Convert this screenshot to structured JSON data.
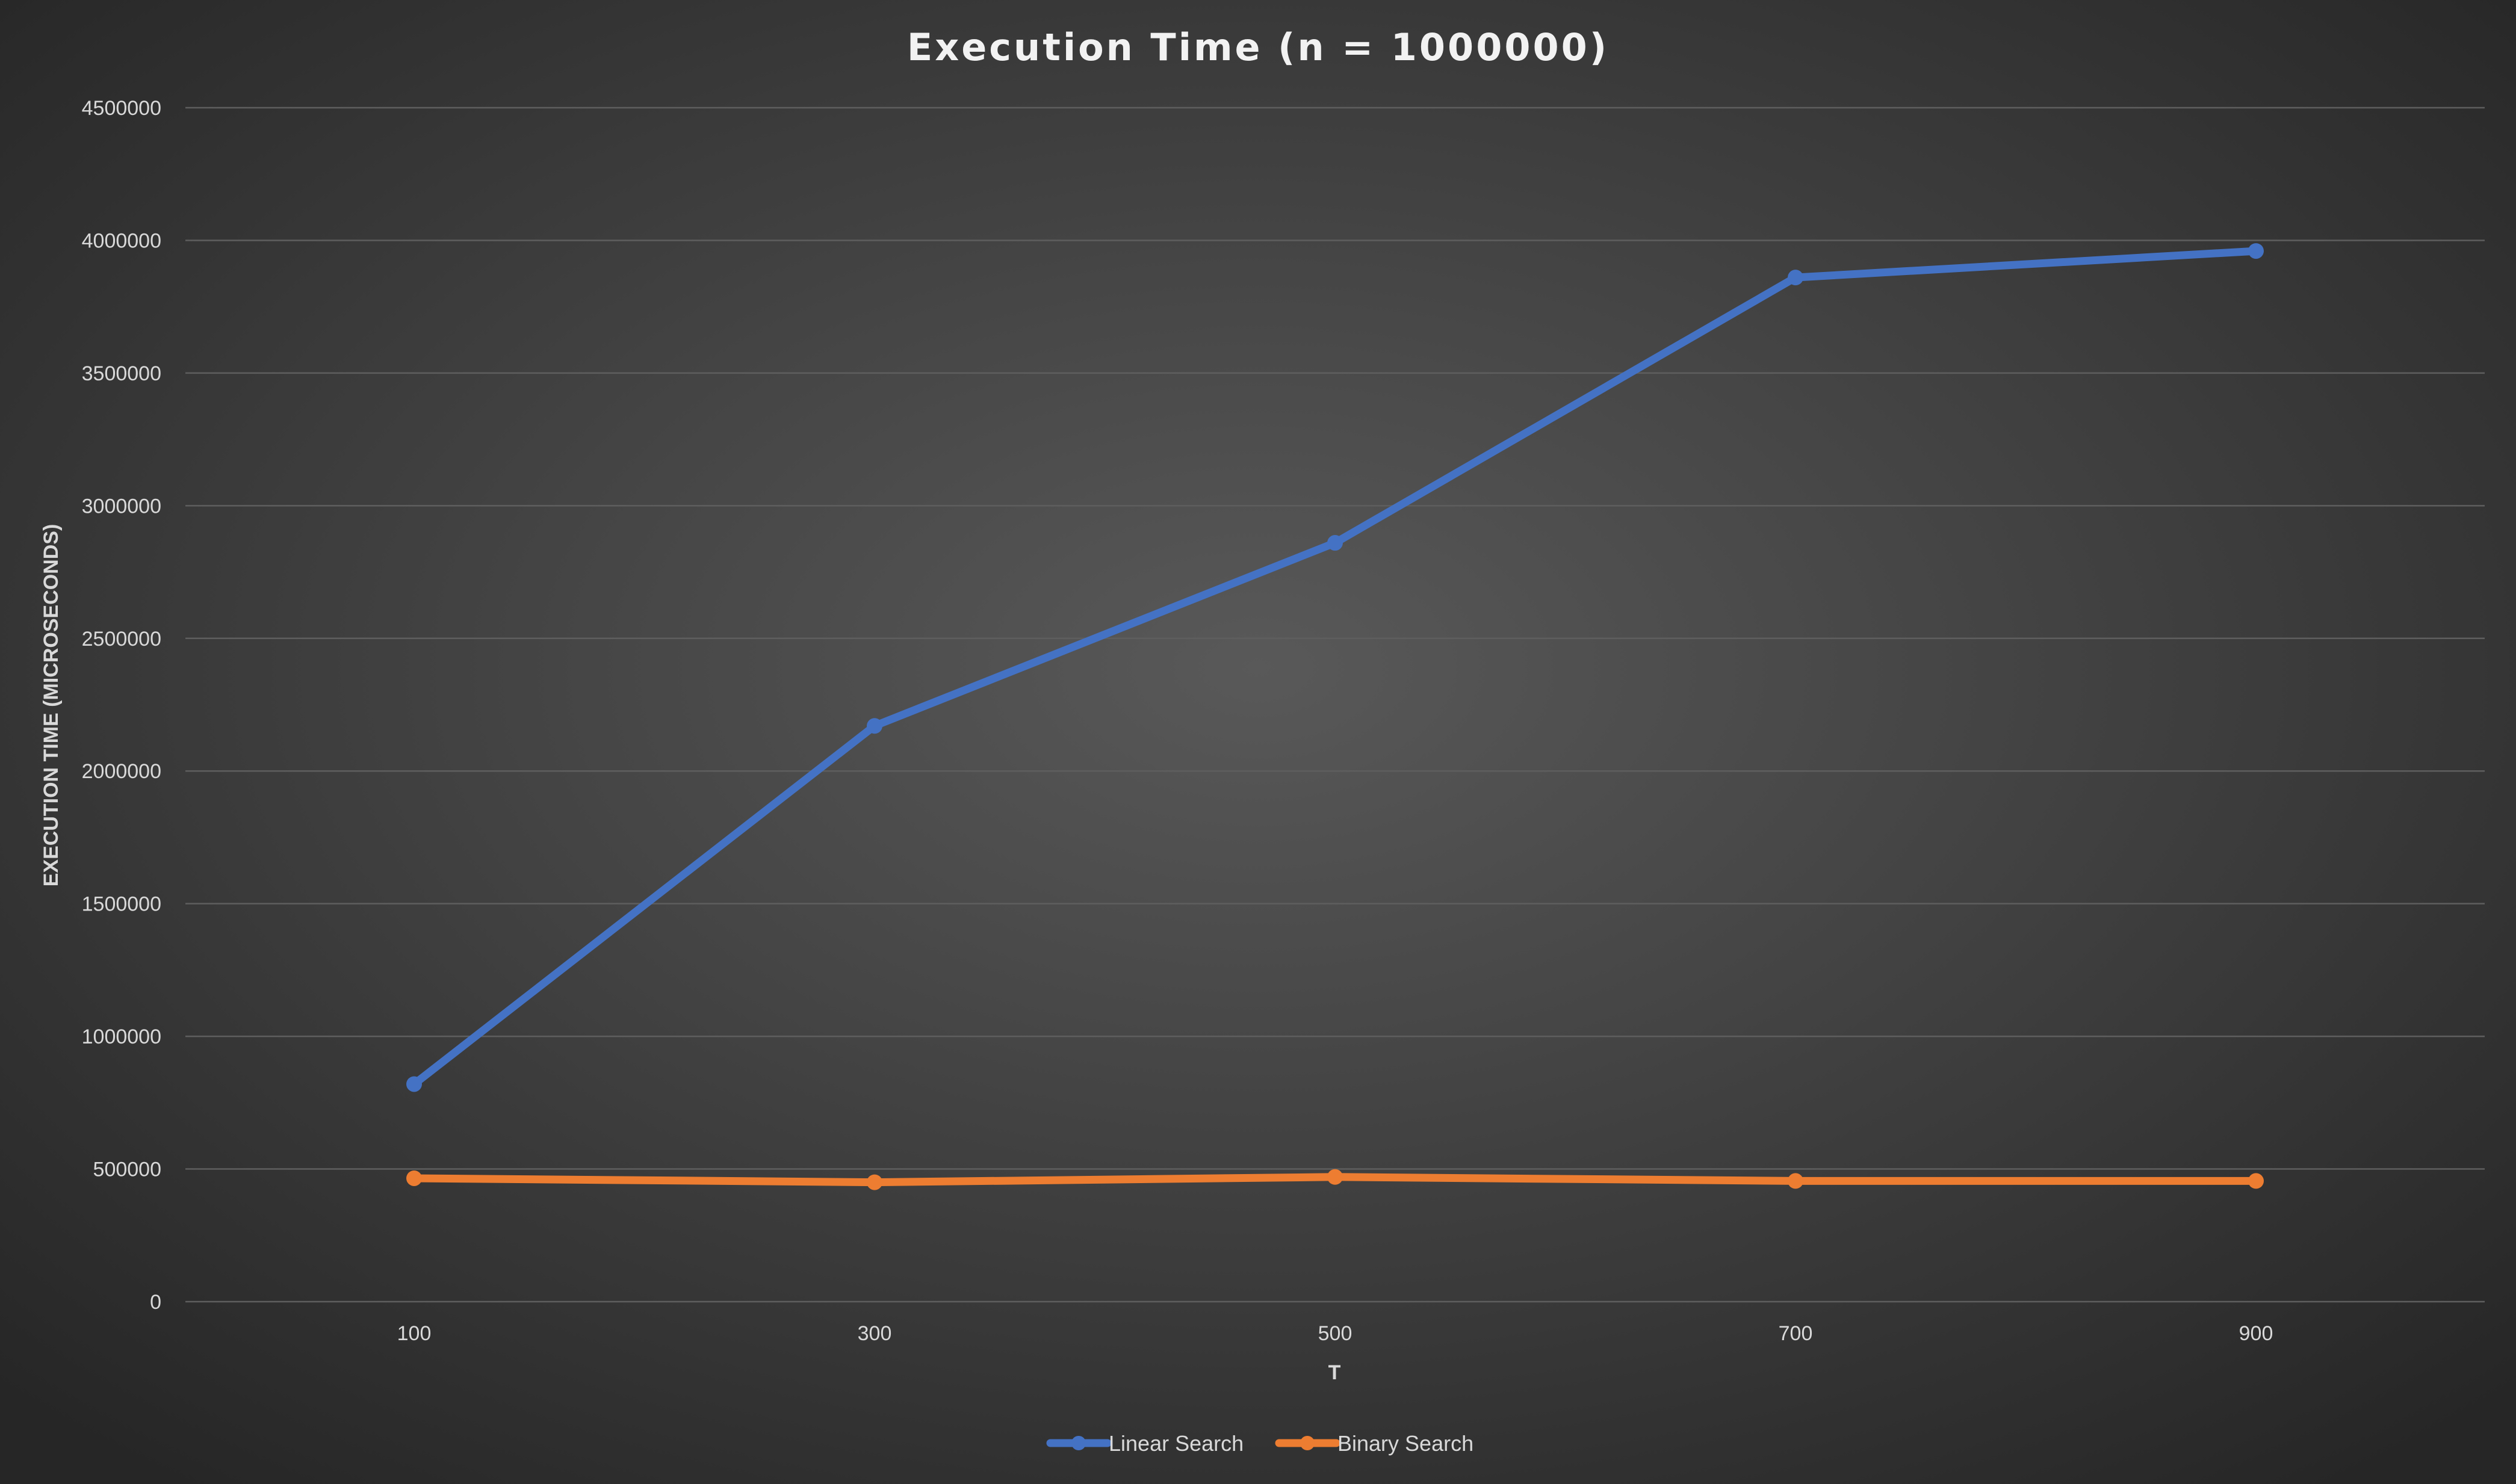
{
  "chart_data": {
    "type": "line",
    "title": "Execution Time (n = 1000000)",
    "xlabel": "T",
    "ylabel": "EXECUTION TIME (MICROSECONDS)",
    "categories": [
      "100",
      "300",
      "500",
      "700",
      "900"
    ],
    "ylim": [
      0,
      4500000
    ],
    "yticks": [
      "0",
      "500000",
      "1000000",
      "1500000",
      "2000000",
      "2500000",
      "3000000",
      "3500000",
      "4000000",
      "4500000"
    ],
    "grid": true,
    "legend_position": "bottom",
    "series": [
      {
        "name": "Linear Search",
        "color": "#4472c4",
        "values": [
          820000,
          2170000,
          2860000,
          3860000,
          3960000
        ]
      },
      {
        "name": "Binary Search",
        "color": "#ed7d31",
        "values": [
          465000,
          450000,
          470000,
          455000,
          455000
        ]
      }
    ]
  }
}
